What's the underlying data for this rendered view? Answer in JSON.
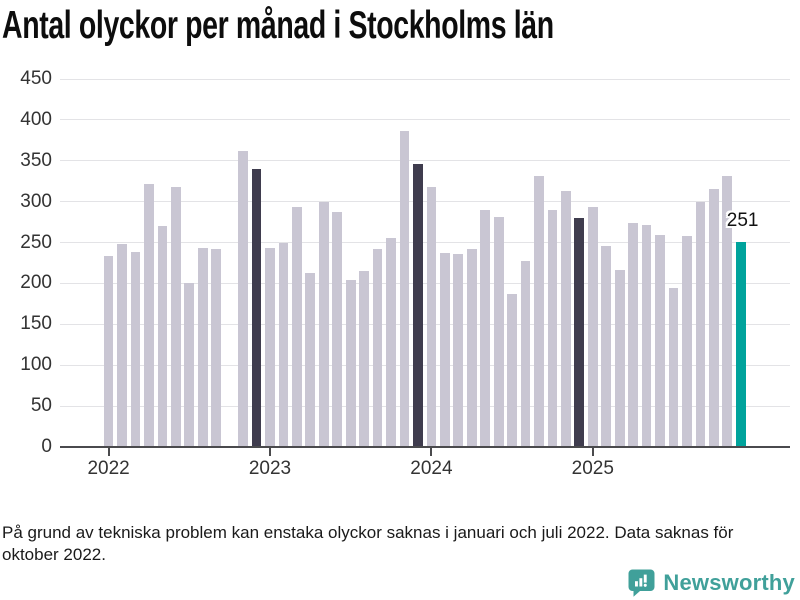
{
  "title": "Antal olyckor per månad i Stockholms län",
  "footnote": "På grund av tekniska problem kan enstaka olyckor saknas i januari och juli 2022. Data saknas för oktober 2022.",
  "logo": {
    "text": "Newsworthy"
  },
  "colors": {
    "bar_default": "#c9c6d3",
    "bar_december": "#3f3c4e",
    "bar_highlight": "#00a39c",
    "gridline": "#e3e3e6",
    "axis": "#4a4a4d",
    "logo_teal": "#40a09a"
  },
  "chart_data": {
    "type": "bar",
    "title": "Antal olyckor per månad i Stockholms län",
    "xlabel": "",
    "ylabel": "",
    "ylim": [
      0,
      450
    ],
    "y_ticks": [
      0,
      50,
      100,
      150,
      200,
      250,
      300,
      350,
      400,
      450
    ],
    "grid": true,
    "legend": false,
    "x_tick_labels": [
      {
        "index": 0,
        "label": "2022"
      },
      {
        "index": 12,
        "label": "2023"
      },
      {
        "index": 24,
        "label": "2024"
      },
      {
        "index": 36,
        "label": "2025"
      }
    ],
    "annotation": {
      "text": "251",
      "point": "2025-12"
    },
    "points": [
      {
        "month": "2022-01",
        "value": 233,
        "color": "default"
      },
      {
        "month": "2022-02",
        "value": 248,
        "color": "default"
      },
      {
        "month": "2022-03",
        "value": 239,
        "color": "default"
      },
      {
        "month": "2022-04",
        "value": 322,
        "color": "default"
      },
      {
        "month": "2022-05",
        "value": 270,
        "color": "default"
      },
      {
        "month": "2022-06",
        "value": 318,
        "color": "default"
      },
      {
        "month": "2022-07",
        "value": 201,
        "color": "default"
      },
      {
        "month": "2022-08",
        "value": 243,
        "color": "default"
      },
      {
        "month": "2022-09",
        "value": 242,
        "color": "default"
      },
      {
        "month": "2022-10",
        "value": null,
        "color": "missing"
      },
      {
        "month": "2022-11",
        "value": 362,
        "color": "default"
      },
      {
        "month": "2022-12",
        "value": 340,
        "color": "december"
      },
      {
        "month": "2023-01",
        "value": 243,
        "color": "default"
      },
      {
        "month": "2023-02",
        "value": 250,
        "color": "default"
      },
      {
        "month": "2023-03",
        "value": 293,
        "color": "default"
      },
      {
        "month": "2023-04",
        "value": 213,
        "color": "default"
      },
      {
        "month": "2023-05",
        "value": 300,
        "color": "default"
      },
      {
        "month": "2023-06",
        "value": 287,
        "color": "default"
      },
      {
        "month": "2023-07",
        "value": 204,
        "color": "default"
      },
      {
        "month": "2023-08",
        "value": 215,
        "color": "default"
      },
      {
        "month": "2023-09",
        "value": 242,
        "color": "default"
      },
      {
        "month": "2023-10",
        "value": 255,
        "color": "default"
      },
      {
        "month": "2023-11",
        "value": 387,
        "color": "default"
      },
      {
        "month": "2023-12",
        "value": 346,
        "color": "december"
      },
      {
        "month": "2024-01",
        "value": 318,
        "color": "default"
      },
      {
        "month": "2024-02",
        "value": 237,
        "color": "default"
      },
      {
        "month": "2024-03",
        "value": 236,
        "color": "default"
      },
      {
        "month": "2024-04",
        "value": 242,
        "color": "default"
      },
      {
        "month": "2024-05",
        "value": 290,
        "color": "default"
      },
      {
        "month": "2024-06",
        "value": 281,
        "color": "default"
      },
      {
        "month": "2024-07",
        "value": 187,
        "color": "default"
      },
      {
        "month": "2024-08",
        "value": 228,
        "color": "default"
      },
      {
        "month": "2024-09",
        "value": 331,
        "color": "default"
      },
      {
        "month": "2024-10",
        "value": 290,
        "color": "default"
      },
      {
        "month": "2024-11",
        "value": 313,
        "color": "default"
      },
      {
        "month": "2024-12",
        "value": 280,
        "color": "december"
      },
      {
        "month": "2025-01",
        "value": 293,
        "color": "default"
      },
      {
        "month": "2025-02",
        "value": 246,
        "color": "default"
      },
      {
        "month": "2025-03",
        "value": 216,
        "color": "default"
      },
      {
        "month": "2025-04",
        "value": 274,
        "color": "default"
      },
      {
        "month": "2025-05",
        "value": 272,
        "color": "default"
      },
      {
        "month": "2025-06",
        "value": 259,
        "color": "default"
      },
      {
        "month": "2025-07",
        "value": 195,
        "color": "default"
      },
      {
        "month": "2025-08",
        "value": 258,
        "color": "default"
      },
      {
        "month": "2025-09",
        "value": 300,
        "color": "default"
      },
      {
        "month": "2025-10",
        "value": 316,
        "color": "default"
      },
      {
        "month": "2025-11",
        "value": 331,
        "color": "default"
      },
      {
        "month": "2025-12",
        "value": 251,
        "color": "highlight"
      }
    ]
  }
}
